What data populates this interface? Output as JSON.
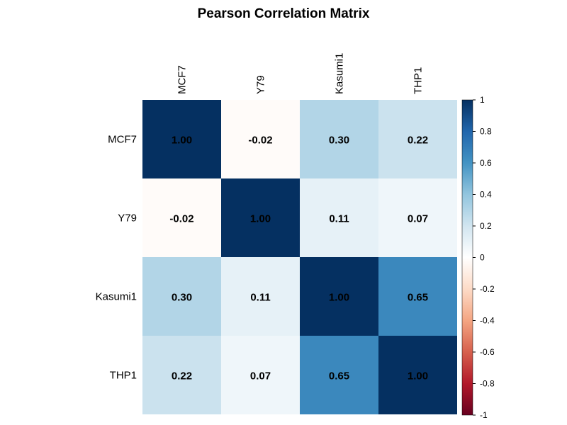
{
  "chart_data": {
    "type": "heatmap",
    "title": "Pearson Correlation Matrix",
    "row_labels": [
      "MCF7",
      "Y79",
      "Kasumi1",
      "THP1"
    ],
    "col_labels": [
      "MCF7",
      "Y79",
      "Kasumi1",
      "THP1"
    ],
    "values": [
      [
        1.0,
        -0.02,
        0.3,
        0.22
      ],
      [
        -0.02,
        1.0,
        0.11,
        0.07
      ],
      [
        0.3,
        0.11,
        1.0,
        0.65
      ],
      [
        0.22,
        0.07,
        0.65,
        1.0
      ]
    ],
    "value_labels": [
      [
        "1.00",
        "-0.02",
        "0.30",
        "0.22"
      ],
      [
        "-0.02",
        "1.00",
        "0.11",
        "0.07"
      ],
      [
        "0.30",
        "0.11",
        "1.00",
        "0.65"
      ],
      [
        "0.22",
        "0.07",
        "0.65",
        "1.00"
      ]
    ],
    "color_scale": {
      "range": [
        -1,
        1
      ],
      "low_color": "#67001f",
      "mid_color": "#ffffff",
      "high_color": "#053061",
      "colormap": "RdBu"
    },
    "colorbar": {
      "placement": "right",
      "ticks": [
        1,
        0.8,
        0.6,
        0.4,
        0.2,
        0,
        -0.2,
        -0.4,
        -0.6,
        -0.8,
        -1
      ],
      "tick_labels": [
        "1",
        "0.8",
        "0.6",
        "0.4",
        "0.2",
        "0",
        "-0.2",
        "-0.4",
        "-0.6",
        "-0.8",
        "-1"
      ]
    }
  }
}
